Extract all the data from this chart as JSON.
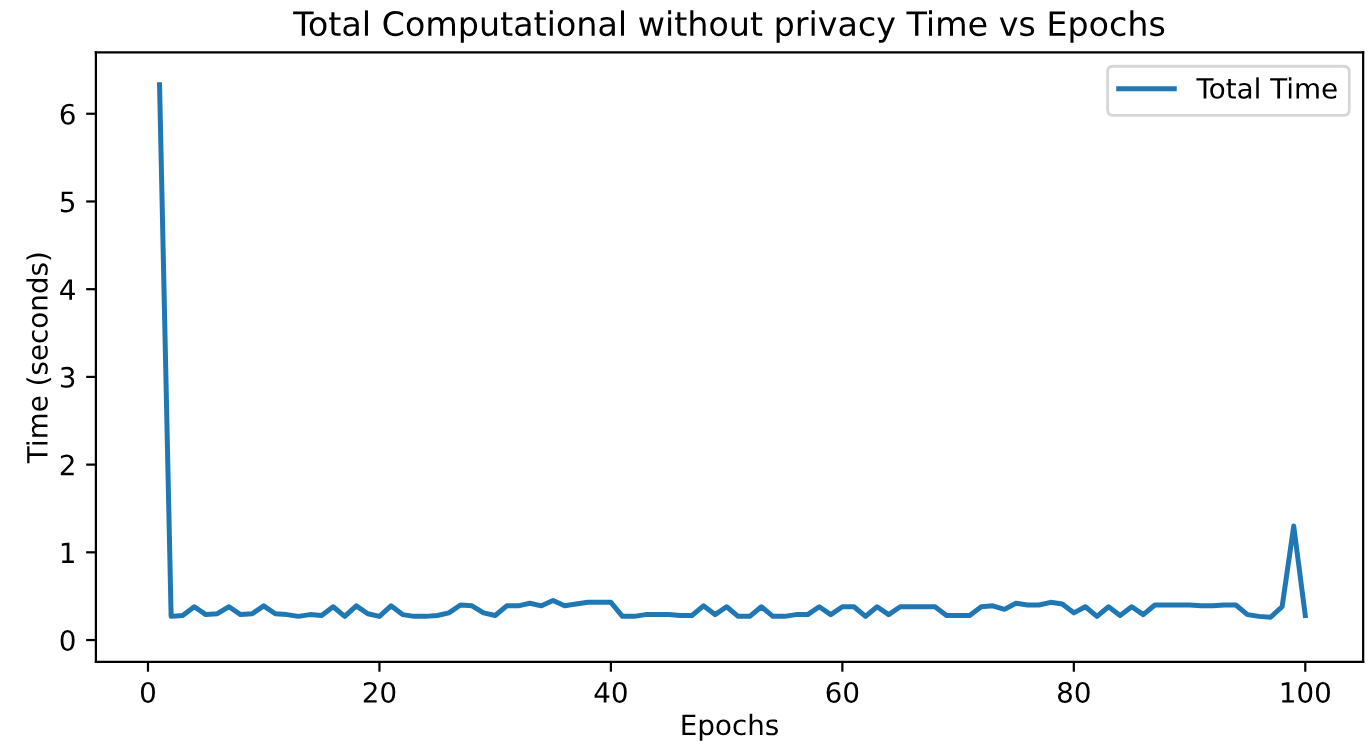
{
  "chart_data": {
    "type": "line",
    "title": "Total Computational without privacy Time vs Epochs",
    "xlabel": "Epochs",
    "ylabel": "Time (seconds)",
    "x": [
      1,
      2,
      3,
      4,
      5,
      6,
      7,
      8,
      9,
      10,
      11,
      12,
      13,
      14,
      15,
      16,
      17,
      18,
      19,
      20,
      21,
      22,
      23,
      24,
      25,
      26,
      27,
      28,
      29,
      30,
      31,
      32,
      33,
      34,
      35,
      36,
      37,
      38,
      39,
      40,
      41,
      42,
      43,
      44,
      45,
      46,
      47,
      48,
      49,
      50,
      51,
      52,
      53,
      54,
      55,
      56,
      57,
      58,
      59,
      60,
      61,
      62,
      63,
      64,
      65,
      66,
      67,
      68,
      69,
      70,
      71,
      72,
      73,
      74,
      75,
      76,
      77,
      78,
      79,
      80,
      81,
      82,
      83,
      84,
      85,
      86,
      87,
      88,
      89,
      90,
      91,
      92,
      93,
      94,
      95,
      96,
      97,
      98,
      99,
      100
    ],
    "series": [
      {
        "name": "Total Time",
        "color": "#1f77b4",
        "values": [
          6.33,
          0.27,
          0.28,
          0.38,
          0.29,
          0.3,
          0.38,
          0.29,
          0.3,
          0.39,
          0.3,
          0.29,
          0.27,
          0.29,
          0.28,
          0.38,
          0.27,
          0.39,
          0.3,
          0.27,
          0.39,
          0.29,
          0.27,
          0.27,
          0.28,
          0.31,
          0.4,
          0.39,
          0.31,
          0.28,
          0.39,
          0.39,
          0.42,
          0.39,
          0.45,
          0.39,
          0.41,
          0.43,
          0.43,
          0.43,
          0.27,
          0.27,
          0.29,
          0.29,
          0.29,
          0.28,
          0.28,
          0.39,
          0.29,
          0.38,
          0.27,
          0.27,
          0.38,
          0.27,
          0.27,
          0.29,
          0.29,
          0.38,
          0.29,
          0.38,
          0.38,
          0.27,
          0.38,
          0.29,
          0.38,
          0.38,
          0.38,
          0.38,
          0.28,
          0.28,
          0.28,
          0.38,
          0.39,
          0.35,
          0.42,
          0.4,
          0.4,
          0.43,
          0.41,
          0.31,
          0.38,
          0.27,
          0.38,
          0.28,
          0.38,
          0.29,
          0.4,
          0.4,
          0.4,
          0.4,
          0.39,
          0.39,
          0.4,
          0.4,
          0.29,
          0.27,
          0.26,
          0.38,
          1.3,
          0.28
        ]
      }
    ],
    "xlim": [
      -4.5,
      105
    ],
    "ylim": [
      -0.25,
      6.7
    ],
    "xticks": [
      0,
      20,
      40,
      60,
      80,
      100
    ],
    "yticks": [
      0,
      1,
      2,
      3,
      4,
      5,
      6
    ],
    "legend": "top right",
    "grid": false,
    "marker": "none",
    "line_style": "solid"
  }
}
